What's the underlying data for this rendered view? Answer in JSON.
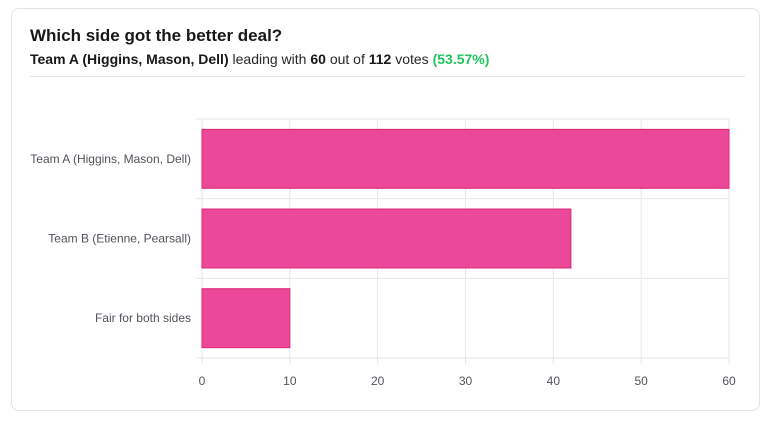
{
  "poll": {
    "question": "Which side got the better deal?",
    "leader_name": "Team A (Higgins, Mason, Dell)",
    "leading_with": "leading with",
    "leader_votes": "60",
    "out_of": "out of",
    "total_votes": "112",
    "votes_word": "votes",
    "leader_percent": "(53.57%)"
  },
  "colors": {
    "bar": "#ec4899",
    "bar_stroke": "#db2777",
    "grid": "#e5e7eb",
    "tick_text": "#52525b",
    "leader_percent": "#22c55e"
  },
  "chart_data": {
    "type": "bar",
    "orientation": "horizontal",
    "categories": [
      "Team A (Higgins, Mason, Dell)",
      "Team B (Etienne, Pearsall)",
      "Fair for both sides"
    ],
    "values": [
      60,
      42,
      10
    ],
    "xlim": [
      0,
      60
    ],
    "xticks": [
      "0",
      "10",
      "20",
      "30",
      "40",
      "50",
      "60"
    ],
    "grid": true
  }
}
